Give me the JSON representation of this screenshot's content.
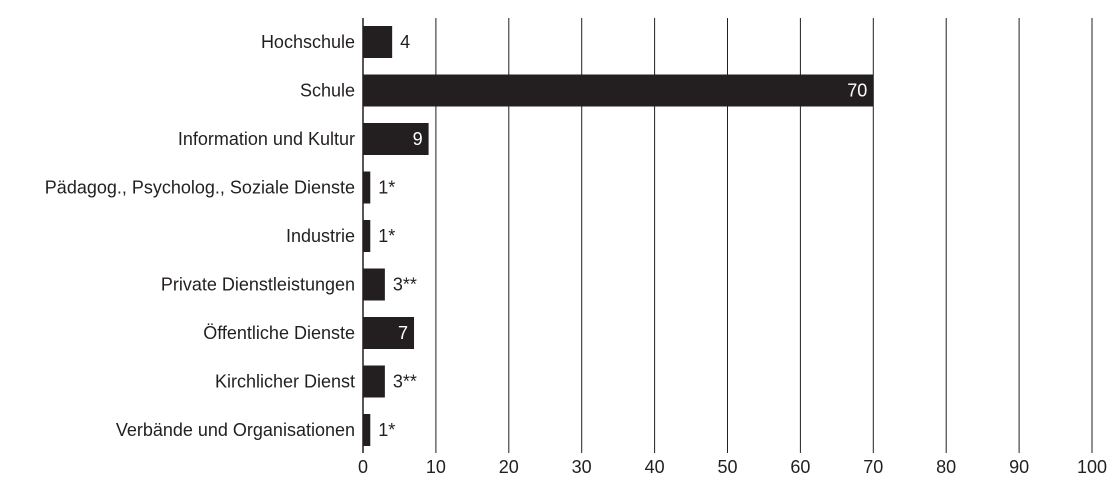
{
  "chart_data": {
    "type": "bar",
    "orientation": "horizontal",
    "title": "",
    "xlabel": "",
    "ylabel": "",
    "xlim": [
      0,
      100
    ],
    "x_ticks": [
      0,
      10,
      20,
      30,
      40,
      50,
      60,
      70,
      80,
      90,
      100
    ],
    "grid": true,
    "legend": "none",
    "bar_color": "#231f20",
    "categories": [
      "Hochschule",
      "Schule",
      "Information und Kultur",
      "Pädagog., Psycholog., Soziale Dienste",
      "Industrie",
      "Private Dienstleistungen",
      "Öffentliche Dienste",
      "Kirchlicher Dienst",
      "Verbände und Organisationen"
    ],
    "values": [
      4,
      70,
      9,
      1,
      1,
      3,
      7,
      3,
      1
    ],
    "data_labels": [
      "4",
      "70",
      "9",
      "1*",
      "1*",
      "3**",
      "7",
      "3**",
      "1*"
    ]
  }
}
